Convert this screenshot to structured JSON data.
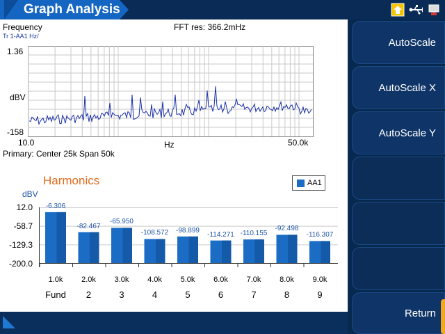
{
  "app": {
    "title": "Graph Analysis"
  },
  "status_icons": [
    "home-icon",
    "usb-icon",
    "connection-icon"
  ],
  "spectrum": {
    "mode_label": "Frequency",
    "trace_label": "Tr 1-AA1 Hz/",
    "fft_res": "FFT res: 366.2mHz",
    "y_top": "1.36",
    "y_unit": "dBV",
    "y_bottom": "-158",
    "x_left": "10.0",
    "x_unit": "Hz",
    "x_right": "50.0k",
    "primary": "Primary: Center 25k Span 50k"
  },
  "harmonics": {
    "title": "Harmonics",
    "legend": "AA1",
    "y_unit": "dBV",
    "y_ticks": [
      "12.0",
      "-58.7",
      "-129.3",
      "-200.0"
    ]
  },
  "chart_data": {
    "type": "bar",
    "title": "Harmonics",
    "ylabel": "dBV",
    "ylim": [
      -200.0,
      12.0
    ],
    "categories": [
      "1.0k",
      "2.0k",
      "3.0k",
      "4.0k",
      "5.0k",
      "6.0k",
      "7.0k",
      "8.0k",
      "9.0k"
    ],
    "orders": [
      "Fund",
      "2",
      "3",
      "4",
      "5",
      "6",
      "7",
      "8",
      "9"
    ],
    "series": [
      {
        "name": "AA1",
        "values": [
          -6.306,
          -82.467,
          -65.95,
          -108.572,
          -98.899,
          -114.271,
          -110.155,
          -92.498,
          -116.307
        ]
      }
    ],
    "value_labels": [
      "-6.306",
      "-82.467",
      "-65.950",
      "-108.572",
      "-98.899",
      "-114.271",
      "-110.155",
      "-92.498",
      "-116.307"
    ],
    "legend_position": "top-right",
    "color": "#1b6cc4"
  },
  "sidebar": {
    "buttons": [
      {
        "label": "AutoScale"
      },
      {
        "label": "AutoScale X"
      },
      {
        "label": "AutoScale Y"
      },
      {
        "label": ""
      },
      {
        "label": ""
      },
      {
        "label": ""
      },
      {
        "label": "Return"
      }
    ]
  }
}
